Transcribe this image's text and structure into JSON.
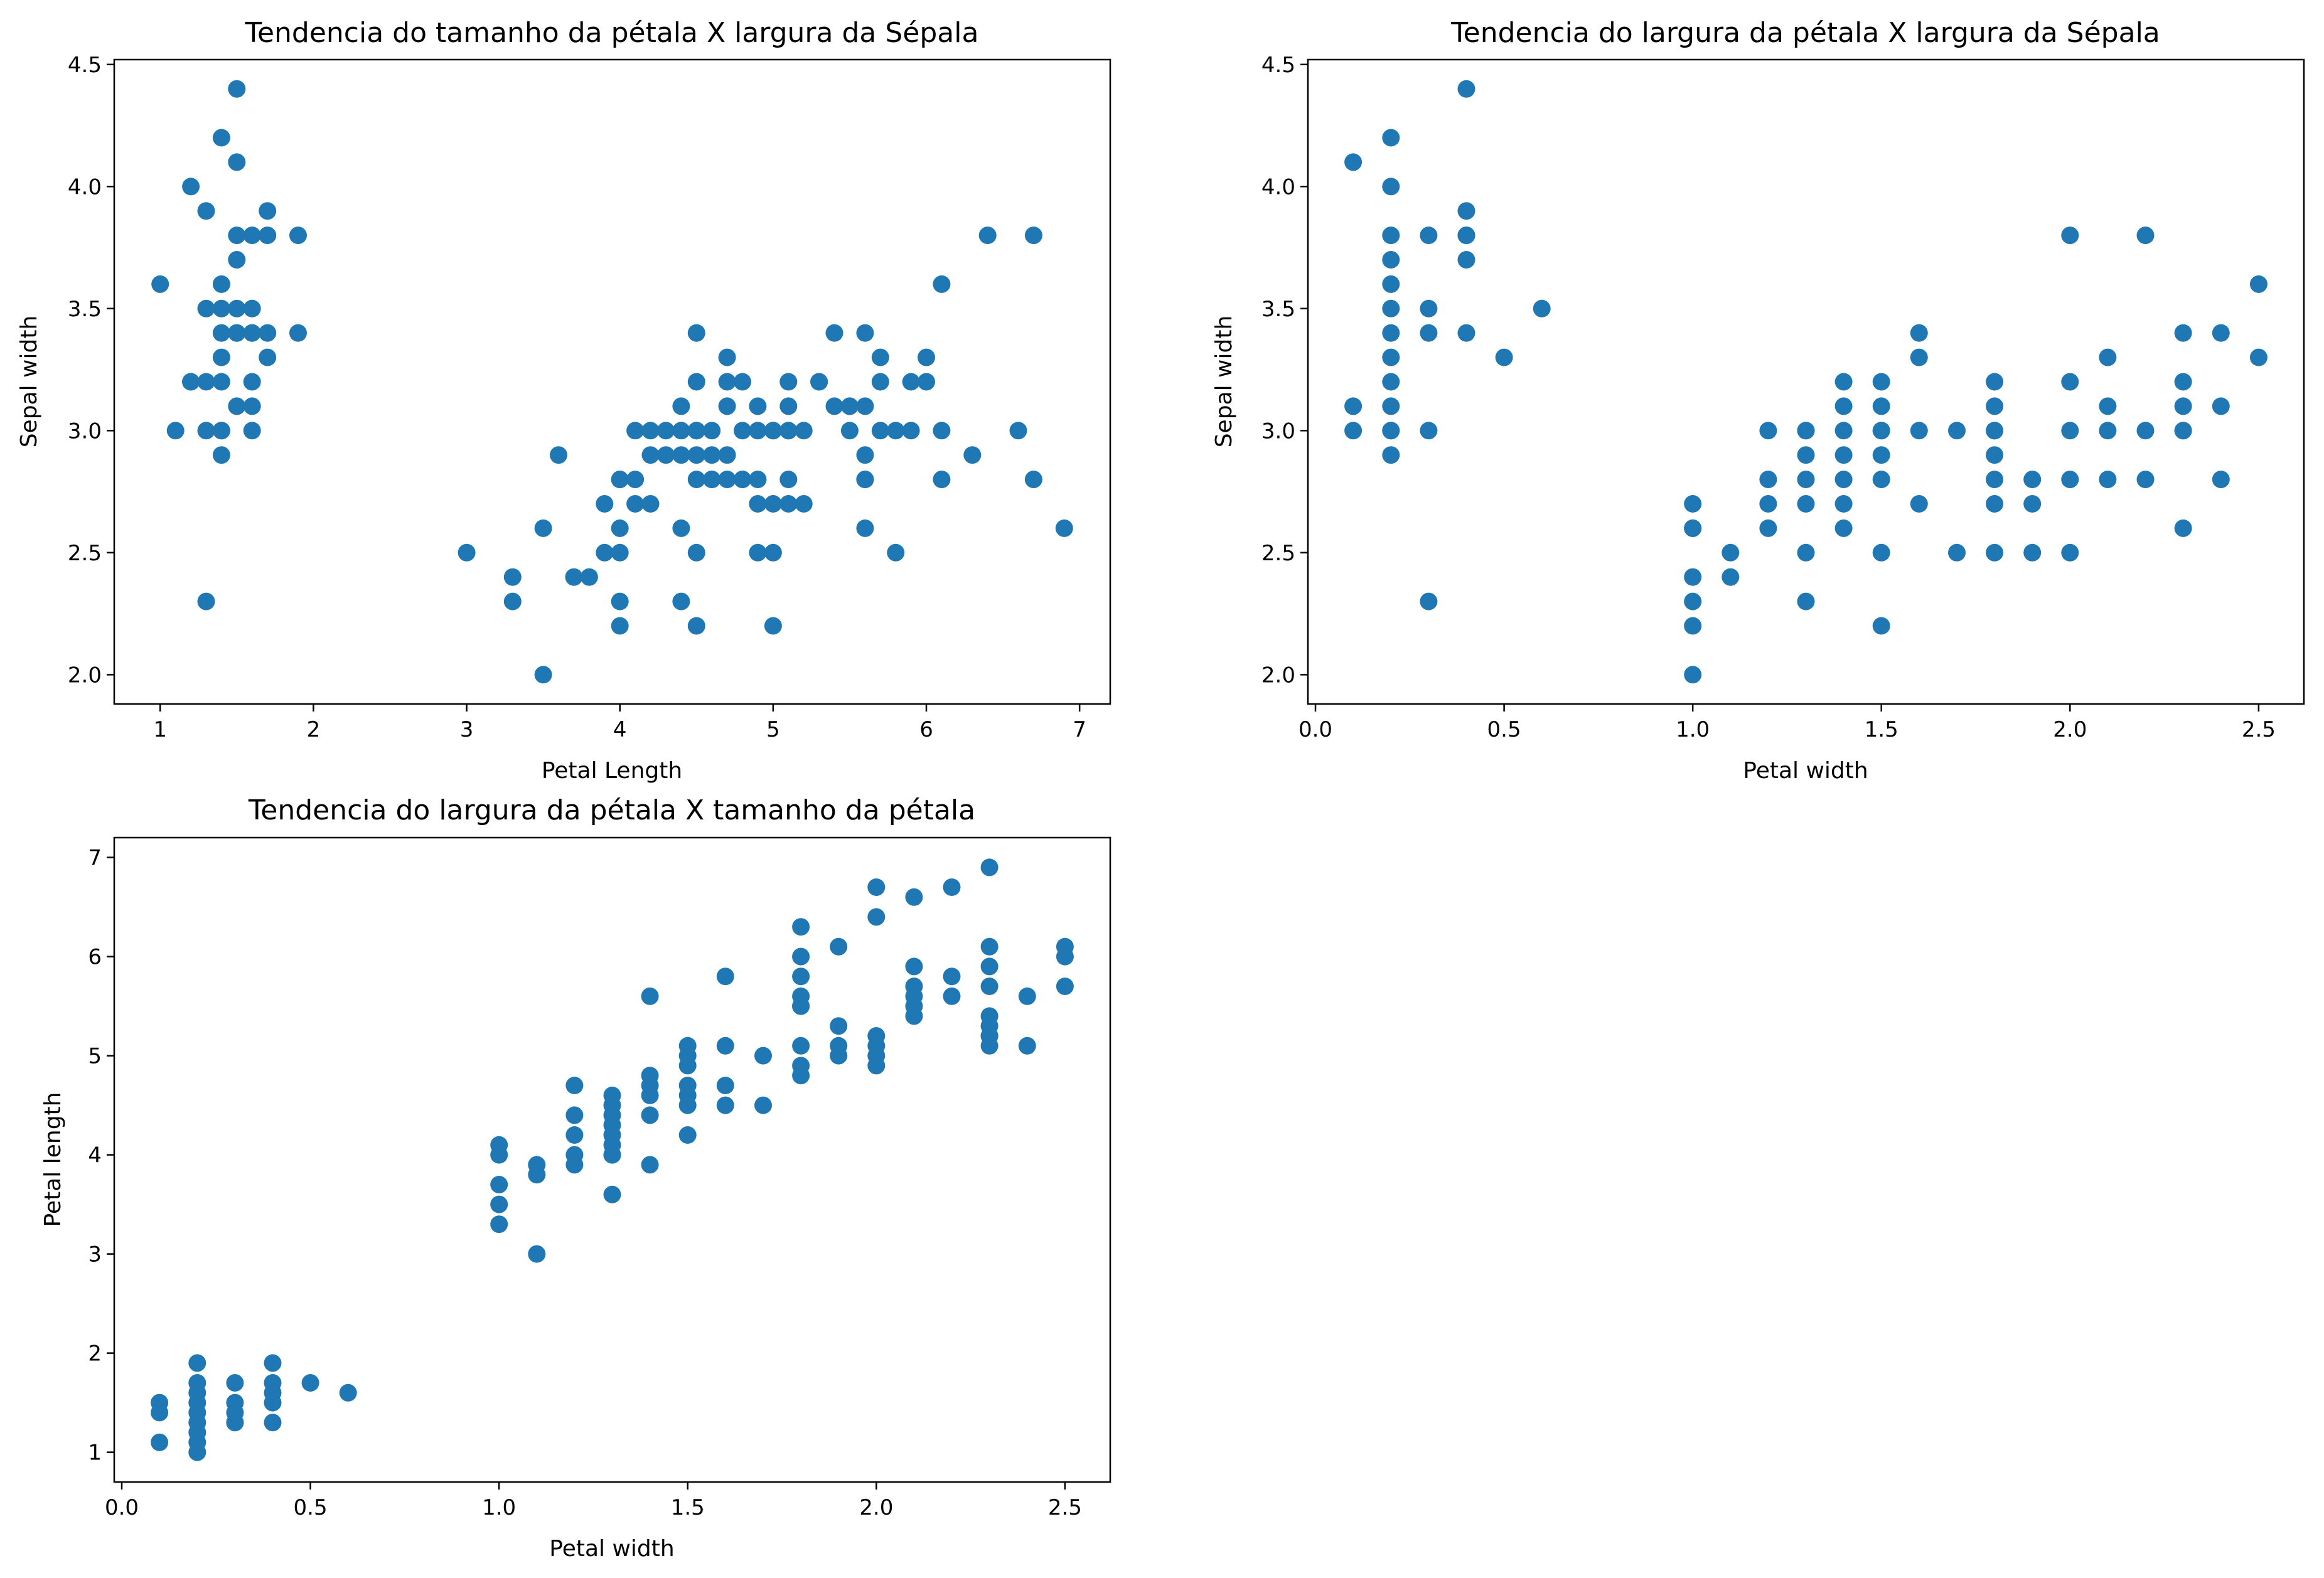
{
  "chart_data": [
    {
      "type": "scatter",
      "title": "Tendencia do tamanho da pétala X largura da Sépala",
      "xlabel": "Petal Length",
      "ylabel": "Sepal width",
      "xlim": [
        0.7,
        7.2
      ],
      "ylim": [
        1.88,
        4.52
      ],
      "xticks": [
        1,
        2,
        3,
        4,
        5,
        6,
        7
      ],
      "xtick_labels": [
        "1",
        "2",
        "3",
        "4",
        "5",
        "6",
        "7"
      ],
      "yticks": [
        2.0,
        2.5,
        3.0,
        3.5,
        4.0,
        4.5
      ],
      "ytick_labels": [
        "2.0",
        "2.5",
        "3.0",
        "3.5",
        "4.0",
        "4.5"
      ],
      "grid": false,
      "color": "#1f77b4",
      "x": [
        1.0,
        1.1,
        1.2,
        1.2,
        1.2,
        1.3,
        1.3,
        1.3,
        1.3,
        1.3,
        1.4,
        1.4,
        1.4,
        1.4,
        1.4,
        1.4,
        1.4,
        1.4,
        1.4,
        1.5,
        1.5,
        1.5,
        1.5,
        1.5,
        1.5,
        1.5,
        1.5,
        1.6,
        1.6,
        1.6,
        1.6,
        1.6,
        1.6,
        1.6,
        1.7,
        1.7,
        1.7,
        1.7,
        1.9,
        1.9,
        3.0,
        3.3,
        3.3,
        3.5,
        3.5,
        3.6,
        3.7,
        3.8,
        3.9,
        3.9,
        4.0,
        4.0,
        4.0,
        4.0,
        4.0,
        4.0,
        4.1,
        4.1,
        4.1,
        4.2,
        4.2,
        4.2,
        4.3,
        4.3,
        4.4,
        4.4,
        4.4,
        4.4,
        4.4,
        4.5,
        4.5,
        4.5,
        4.5,
        4.5,
        4.5,
        4.5,
        4.5,
        4.6,
        4.6,
        4.6,
        4.6,
        4.7,
        4.7,
        4.7,
        4.7,
        4.7,
        4.8,
        4.8,
        4.8,
        4.8,
        4.9,
        4.9,
        4.9,
        4.9,
        4.9,
        5.0,
        5.0,
        5.0,
        5.0,
        5.0,
        5.1,
        5.1,
        5.1,
        5.1,
        5.1,
        5.1,
        5.2,
        5.2,
        5.3,
        5.3,
        5.4,
        5.4,
        5.5,
        5.5,
        5.5,
        5.6,
        5.6,
        5.6,
        5.6,
        5.6,
        5.6,
        5.7,
        5.7,
        5.7,
        5.8,
        5.8,
        5.9,
        5.9,
        6.0,
        6.0,
        6.1,
        6.1,
        6.1,
        6.3,
        6.4,
        6.6,
        6.7,
        6.7,
        6.9
      ],
      "y": [
        3.6,
        3.0,
        4.0,
        3.2,
        3.2,
        3.9,
        3.5,
        3.2,
        3.0,
        2.3,
        4.2,
        3.6,
        3.5,
        3.4,
        3.3,
        3.2,
        3.0,
        3.0,
        2.9,
        4.4,
        4.1,
        3.8,
        3.7,
        3.5,
        3.4,
        3.4,
        3.1,
        3.8,
        3.5,
        3.4,
        3.4,
        3.2,
        3.1,
        3.0,
        3.9,
        3.8,
        3.4,
        3.3,
        3.8,
        3.4,
        2.5,
        2.4,
        2.3,
        2.6,
        2.0,
        2.9,
        2.4,
        2.4,
        2.7,
        2.5,
        2.8,
        2.6,
        2.5,
        2.3,
        2.2,
        2.8,
        3.0,
        2.8,
        2.7,
        3.0,
        2.9,
        2.7,
        2.9,
        3.0,
        3.1,
        3.0,
        2.9,
        2.6,
        2.3,
        3.4,
        3.2,
        3.0,
        2.9,
        2.8,
        2.5,
        2.2,
        3.0,
        3.0,
        2.9,
        2.8,
        2.8,
        3.3,
        3.2,
        3.1,
        2.9,
        2.8,
        3.2,
        3.0,
        2.8,
        2.8,
        3.1,
        3.0,
        2.8,
        2.7,
        2.5,
        3.0,
        3.0,
        2.7,
        2.5,
        2.2,
        3.2,
        3.1,
        3.0,
        2.8,
        2.7,
        3.0,
        3.0,
        2.7,
        3.2,
        3.2,
        3.4,
        3.1,
        3.1,
        3.0,
        3.1,
        3.4,
        3.1,
        2.9,
        2.8,
        2.6,
        2.8,
        3.3,
        3.0,
        3.2,
        3.0,
        2.5,
        3.2,
        3.0,
        3.3,
        3.2,
        3.6,
        3.0,
        2.8,
        2.9,
        3.8,
        3.0,
        3.8,
        2.8,
        2.6
      ]
    },
    {
      "type": "scatter",
      "title": "Tendencia do largura da pétala X largura da Sépala",
      "xlabel": "Petal width",
      "ylabel": "Sepal width",
      "xlim": [
        -0.02,
        2.62
      ],
      "ylim": [
        1.88,
        4.52
      ],
      "xticks": [
        0.0,
        0.5,
        1.0,
        1.5,
        2.0,
        2.5
      ],
      "xtick_labels": [
        "0.0",
        "0.5",
        "1.0",
        "1.5",
        "2.0",
        "2.5"
      ],
      "yticks": [
        2.0,
        2.5,
        3.0,
        3.5,
        4.0,
        4.5
      ],
      "ytick_labels": [
        "2.0",
        "2.5",
        "3.0",
        "3.5",
        "4.0",
        "4.5"
      ],
      "grid": false,
      "color": "#1f77b4",
      "x": [
        0.1,
        0.1,
        0.1,
        0.2,
        0.2,
        0.2,
        0.2,
        0.2,
        0.2,
        0.2,
        0.2,
        0.2,
        0.2,
        0.2,
        0.2,
        0.2,
        0.3,
        0.3,
        0.3,
        0.3,
        0.3,
        0.4,
        0.4,
        0.4,
        0.4,
        0.4,
        0.4,
        0.5,
        0.6,
        1.0,
        1.0,
        1.0,
        1.0,
        1.0,
        1.0,
        1.0,
        1.1,
        1.1,
        1.2,
        1.2,
        1.2,
        1.2,
        1.3,
        1.3,
        1.3,
        1.3,
        1.3,
        1.3,
        1.3,
        1.4,
        1.4,
        1.4,
        1.4,
        1.4,
        1.4,
        1.4,
        1.5,
        1.5,
        1.5,
        1.5,
        1.5,
        1.5,
        1.5,
        1.5,
        1.6,
        1.6,
        1.6,
        1.6,
        1.7,
        1.7,
        1.8,
        1.8,
        1.8,
        1.8,
        1.8,
        1.8,
        1.8,
        1.8,
        1.9,
        1.9,
        1.9,
        2.0,
        2.0,
        2.0,
        2.0,
        2.0,
        2.1,
        2.1,
        2.1,
        2.1,
        2.2,
        2.2,
        2.2,
        2.3,
        2.3,
        2.3,
        2.3,
        2.3,
        2.3,
        2.4,
        2.4,
        2.4,
        2.5,
        2.5
      ],
      "y": [
        4.1,
        3.1,
        3.0,
        4.2,
        4.0,
        3.8,
        3.7,
        3.6,
        3.5,
        3.4,
        3.3,
        3.2,
        3.1,
        3.0,
        3.0,
        2.9,
        3.8,
        3.5,
        3.4,
        3.0,
        2.3,
        4.4,
        3.9,
        3.8,
        3.7,
        3.4,
        3.8,
        3.3,
        3.5,
        2.7,
        2.6,
        2.4,
        2.3,
        2.2,
        2.0,
        2.6,
        2.5,
        2.4,
        3.0,
        2.8,
        2.7,
        2.6,
        3.0,
        2.9,
        2.8,
        2.7,
        2.5,
        2.3,
        3.0,
        3.2,
        3.1,
        3.0,
        2.9,
        2.8,
        2.7,
        2.6,
        3.2,
        3.1,
        3.0,
        2.9,
        2.8,
        2.5,
        2.2,
        3.0,
        3.4,
        3.3,
        3.0,
        2.7,
        3.0,
        2.5,
        3.2,
        3.1,
        3.0,
        2.9,
        2.8,
        2.7,
        2.5,
        3.0,
        2.8,
        2.7,
        2.5,
        3.8,
        3.2,
        3.0,
        2.8,
        2.5,
        3.3,
        3.1,
        3.0,
        2.8,
        3.8,
        3.0,
        2.8,
        3.4,
        3.2,
        3.1,
        3.0,
        2.6,
        3.0,
        3.4,
        3.1,
        2.8,
        3.6,
        3.3
      ]
    },
    {
      "type": "scatter",
      "title": "Tendencia do largura da pétala X tamanho da pétala",
      "xlabel": "Petal width",
      "ylabel": "Petal length",
      "xlim": [
        -0.02,
        2.62
      ],
      "ylim": [
        0.7,
        7.2
      ],
      "xticks": [
        0.0,
        0.5,
        1.0,
        1.5,
        2.0,
        2.5
      ],
      "xtick_labels": [
        "0.0",
        "0.5",
        "1.0",
        "1.5",
        "2.0",
        "2.5"
      ],
      "yticks": [
        1,
        2,
        3,
        4,
        5,
        6,
        7
      ],
      "ytick_labels": [
        "1",
        "2",
        "3",
        "4",
        "5",
        "6",
        "7"
      ],
      "grid": false,
      "color": "#1f77b4",
      "x": [
        0.1,
        0.1,
        0.1,
        0.2,
        0.2,
        0.2,
        0.2,
        0.2,
        0.2,
        0.2,
        0.2,
        0.2,
        0.3,
        0.3,
        0.3,
        0.3,
        0.3,
        0.4,
        0.4,
        0.4,
        0.4,
        0.4,
        0.5,
        0.6,
        1.0,
        1.0,
        1.0,
        1.0,
        1.0,
        1.1,
        1.1,
        1.1,
        1.2,
        1.2,
        1.2,
        1.2,
        1.2,
        1.3,
        1.3,
        1.3,
        1.3,
        1.3,
        1.3,
        1.3,
        1.3,
        1.3,
        1.4,
        1.4,
        1.4,
        1.4,
        1.4,
        1.4,
        1.5,
        1.5,
        1.5,
        1.5,
        1.5,
        1.5,
        1.5,
        1.6,
        1.6,
        1.6,
        1.6,
        1.7,
        1.7,
        1.8,
        1.8,
        1.8,
        1.8,
        1.8,
        1.8,
        1.8,
        1.8,
        1.8,
        1.9,
        1.9,
        1.9,
        1.9,
        2.0,
        2.0,
        2.0,
        2.0,
        2.0,
        2.0,
        2.1,
        2.1,
        2.1,
        2.1,
        2.1,
        2.1,
        2.2,
        2.2,
        2.2,
        2.3,
        2.3,
        2.3,
        2.3,
        2.3,
        2.3,
        2.3,
        2.3,
        2.3,
        2.4,
        2.4,
        2.5,
        2.5,
        2.5
      ],
      "y": [
        1.5,
        1.4,
        1.1,
        1.9,
        1.7,
        1.6,
        1.5,
        1.4,
        1.3,
        1.2,
        1.1,
        1.0,
        1.7,
        1.5,
        1.4,
        1.3,
        1.3,
        1.9,
        1.7,
        1.6,
        1.5,
        1.3,
        1.7,
        1.6,
        4.1,
        4.0,
        3.7,
        3.5,
        3.3,
        3.9,
        3.8,
        3.0,
        4.7,
        4.4,
        4.2,
        4.0,
        3.9,
        4.6,
        4.5,
        4.4,
        4.3,
        4.2,
        4.1,
        4.0,
        3.6,
        4.0,
        5.6,
        4.8,
        4.7,
        4.6,
        4.4,
        3.9,
        5.1,
        5.0,
        4.9,
        4.7,
        4.6,
        4.5,
        4.2,
        5.8,
        5.1,
        4.7,
        4.5,
        5.0,
        4.5,
        6.3,
        6.0,
        5.8,
        5.6,
        5.5,
        5.1,
        4.9,
        4.8,
        5.5,
        6.1,
        5.3,
        5.1,
        5.0,
        6.7,
        6.4,
        5.2,
        5.1,
        5.0,
        4.9,
        6.6,
        5.9,
        5.7,
        5.6,
        5.5,
        5.4,
        6.7,
        5.8,
        5.6,
        6.9,
        6.1,
        5.9,
        5.7,
        5.4,
        5.3,
        5.2,
        5.1,
        5.2,
        5.6,
        5.1,
        6.1,
        6.0,
        5.7
      ]
    }
  ]
}
